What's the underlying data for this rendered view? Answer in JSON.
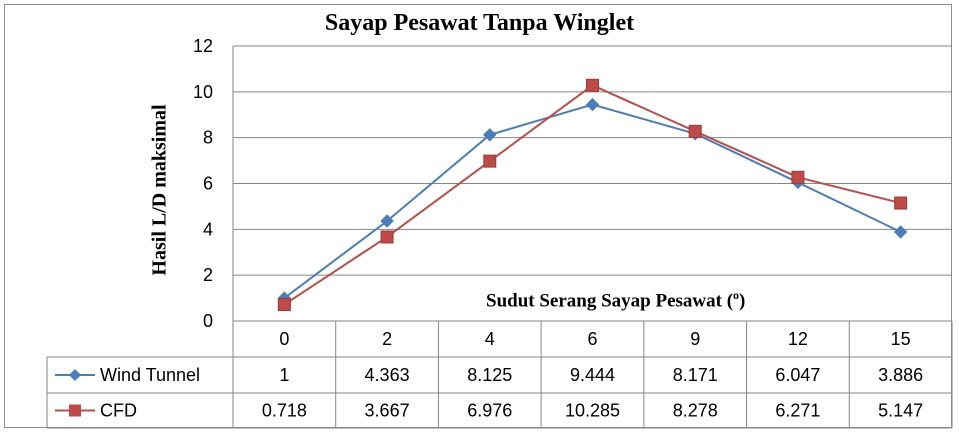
{
  "chart_data": {
    "type": "line",
    "title": "Sayap Pesawat Tanpa Winglet",
    "xlabel": "Sudut Serang Sayap Pesawat (",
    "xlabel_sup": "o",
    "xlabel_suffix": ")",
    "ylabel": "Hasil L/D maksimal",
    "categories": [
      "0",
      "2",
      "4",
      "6",
      "9",
      "12",
      "15"
    ],
    "ylim": [
      0,
      12
    ],
    "yticks": [
      0,
      2,
      4,
      6,
      8,
      10,
      12
    ],
    "grid": true,
    "legend": "data-table",
    "series": [
      {
        "name": "Wind Tunnel",
        "color": "#4a7ebb",
        "marker": "diamond",
        "values": [
          1,
          4.363,
          8.125,
          9.444,
          8.171,
          6.047,
          3.886
        ],
        "labels": [
          "1",
          "4.363",
          "8.125",
          "9.444",
          "8.171",
          "6.047",
          "3.886"
        ]
      },
      {
        "name": "CFD",
        "color": "#be4b48",
        "marker": "square",
        "values": [
          0.718,
          3.667,
          6.976,
          10.285,
          8.278,
          6.271,
          5.147
        ],
        "labels": [
          "0.718",
          "3.667",
          "6.976",
          "10.285",
          "8.278",
          "6.271",
          "5.147"
        ]
      }
    ]
  }
}
